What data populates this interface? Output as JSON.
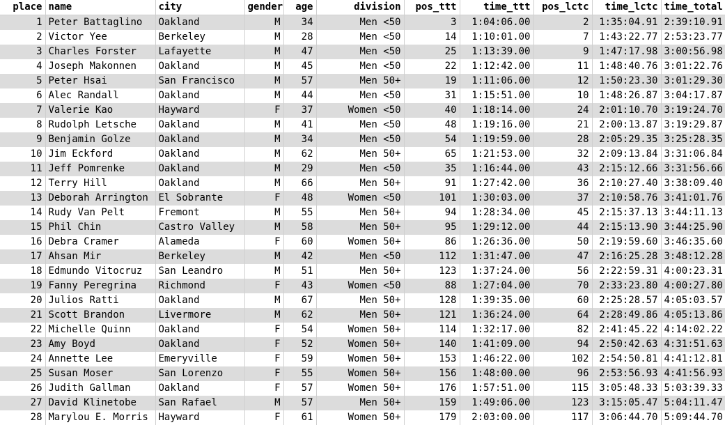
{
  "table": {
    "columns": [
      "place",
      "name",
      "city",
      "gender",
      "age",
      "division",
      "pos_ttt",
      "time_ttt",
      "pos_lctc",
      "time_lctc",
      "time_total"
    ],
    "rows": [
      [
        "1",
        "Peter Battaglino",
        "Oakland",
        "M",
        "34",
        "Men <50",
        "3",
        "1:04:06.00",
        "2",
        "1:35:04.91",
        "2:39:10.91"
      ],
      [
        "2",
        "Victor Yee",
        "Berkeley",
        "M",
        "28",
        "Men <50",
        "14",
        "1:10:01.00",
        "7",
        "1:43:22.77",
        "2:53:23.77"
      ],
      [
        "3",
        "Charles Forster",
        "Lafayette",
        "M",
        "47",
        "Men <50",
        "25",
        "1:13:39.00",
        "9",
        "1:47:17.98",
        "3:00:56.98"
      ],
      [
        "4",
        "Joseph Makonnen",
        "Oakland",
        "M",
        "45",
        "Men <50",
        "22",
        "1:12:42.00",
        "11",
        "1:48:40.76",
        "3:01:22.76"
      ],
      [
        "5",
        "Peter Hsai",
        "San Francisco",
        "M",
        "57",
        "Men 50+",
        "19",
        "1:11:06.00",
        "12",
        "1:50:23.30",
        "3:01:29.30"
      ],
      [
        "6",
        "Alec Randall",
        "Oakland",
        "M",
        "44",
        "Men <50",
        "31",
        "1:15:51.00",
        "10",
        "1:48:26.87",
        "3:04:17.87"
      ],
      [
        "7",
        "Valerie Kao",
        "Hayward",
        "F",
        "37",
        "Women <50",
        "40",
        "1:18:14.00",
        "24",
        "2:01:10.70",
        "3:19:24.70"
      ],
      [
        "8",
        "Rudolph Letsche",
        "Oakland",
        "M",
        "41",
        "Men <50",
        "48",
        "1:19:16.00",
        "21",
        "2:00:13.87",
        "3:19:29.87"
      ],
      [
        "9",
        "Benjamin Golze",
        "Oakland",
        "M",
        "34",
        "Men <50",
        "54",
        "1:19:59.00",
        "28",
        "2:05:29.35",
        "3:25:28.35"
      ],
      [
        "10",
        "Jim Eckford",
        "Oakland",
        "M",
        "62",
        "Men 50+",
        "65",
        "1:21:53.00",
        "32",
        "2:09:13.84",
        "3:31:06.84"
      ],
      [
        "11",
        "Jeff Pomrenke",
        "Oakland",
        "M",
        "29",
        "Men <50",
        "35",
        "1:16:44.00",
        "43",
        "2:15:12.66",
        "3:31:56.66"
      ],
      [
        "12",
        "Terry Hill",
        "Oakland",
        "M",
        "66",
        "Men 50+",
        "91",
        "1:27:42.00",
        "36",
        "2:10:27.40",
        "3:38:09.40"
      ],
      [
        "13",
        "Deborah Arrington",
        "El Sobrante",
        "F",
        "48",
        "Women <50",
        "101",
        "1:30:03.00",
        "37",
        "2:10:58.76",
        "3:41:01.76"
      ],
      [
        "14",
        "Rudy Van Pelt",
        "Fremont",
        "M",
        "55",
        "Men 50+",
        "94",
        "1:28:34.00",
        "45",
        "2:15:37.13",
        "3:44:11.13"
      ],
      [
        "15",
        "Phil Chin",
        "Castro Valley",
        "M",
        "58",
        "Men 50+",
        "95",
        "1:29:12.00",
        "44",
        "2:15:13.90",
        "3:44:25.90"
      ],
      [
        "16",
        "Debra Cramer",
        "Alameda",
        "F",
        "60",
        "Women 50+",
        "86",
        "1:26:36.00",
        "50",
        "2:19:59.60",
        "3:46:35.60"
      ],
      [
        "17",
        "Ahsan Mir",
        "Berkeley",
        "M",
        "42",
        "Men <50",
        "112",
        "1:31:47.00",
        "47",
        "2:16:25.28",
        "3:48:12.28"
      ],
      [
        "18",
        "Edmundo Vitocruz",
        "San Leandro",
        "M",
        "51",
        "Men 50+",
        "123",
        "1:37:24.00",
        "56",
        "2:22:59.31",
        "4:00:23.31"
      ],
      [
        "19",
        "Fanny Peregrina",
        "Richmond",
        "F",
        "43",
        "Women <50",
        "88",
        "1:27:04.00",
        "70",
        "2:33:23.80",
        "4:00:27.80"
      ],
      [
        "20",
        "Julios Ratti",
        "Oakland",
        "M",
        "67",
        "Men 50+",
        "128",
        "1:39:35.00",
        "60",
        "2:25:28.57",
        "4:05:03.57"
      ],
      [
        "21",
        "Scott Brandon",
        "Livermore",
        "M",
        "62",
        "Men 50+",
        "121",
        "1:36:24.00",
        "64",
        "2:28:49.86",
        "4:05:13.86"
      ],
      [
        "22",
        "Michelle Quinn",
        "Oakland",
        "F",
        "54",
        "Women 50+",
        "114",
        "1:32:17.00",
        "82",
        "2:41:45.22",
        "4:14:02.22"
      ],
      [
        "23",
        "Amy Boyd",
        "Oakland",
        "F",
        "52",
        "Women 50+",
        "140",
        "1:41:09.00",
        "94",
        "2:50:42.63",
        "4:31:51.63"
      ],
      [
        "24",
        "Annette Lee",
        "Emeryville",
        "F",
        "59",
        "Women 50+",
        "153",
        "1:46:22.00",
        "102",
        "2:54:50.81",
        "4:41:12.81"
      ],
      [
        "25",
        "Susan Moser",
        "San Lorenzo",
        "F",
        "55",
        "Women 50+",
        "156",
        "1:48:00.00",
        "96",
        "2:53:56.93",
        "4:41:56.93"
      ],
      [
        "26",
        "Judith Gallman",
        "Oakland",
        "F",
        "57",
        "Women 50+",
        "176",
        "1:57:51.00",
        "115",
        "3:05:48.33",
        "5:03:39.33"
      ],
      [
        "27",
        "David Klinetobe",
        "San Rafael",
        "M",
        "57",
        "Men 50+",
        "159",
        "1:49:06.00",
        "123",
        "3:15:05.47",
        "5:04:11.47"
      ],
      [
        "28",
        "Marylou E. Morris",
        "Hayward",
        "F",
        "61",
        "Women 50+",
        "179",
        "2:03:00.00",
        "117",
        "3:06:44.70",
        "5:09:44.70"
      ]
    ]
  }
}
